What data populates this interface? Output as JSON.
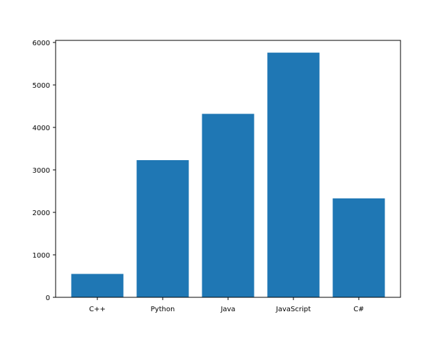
{
  "chart_data": {
    "type": "bar",
    "title": "",
    "xlabel": "",
    "ylabel": "",
    "categories": [
      "C++",
      "Python",
      "Java",
      "JavaScript",
      "C#"
    ],
    "values": [
      550,
      3230,
      4320,
      5760,
      2330
    ],
    "ylim": [
      0,
      6000
    ],
    "yticks": [
      0,
      1000,
      2000,
      3000,
      4000,
      5000,
      6000
    ],
    "grid": false,
    "legend": null,
    "bar_color": "#1f77b4"
  }
}
